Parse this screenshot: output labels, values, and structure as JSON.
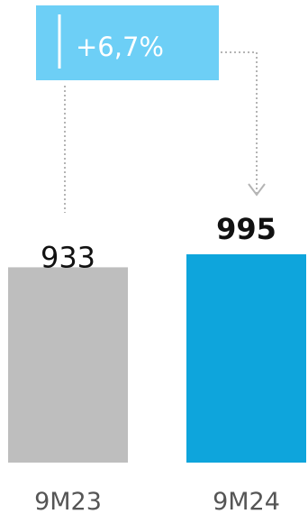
{
  "chart_data": {
    "type": "bar",
    "categories": [
      "9M23",
      "9M24"
    ],
    "values": [
      933,
      995
    ],
    "data_labels": [
      "933",
      "995"
    ],
    "ylim": [
      0,
      1050
    ],
    "grid": false,
    "legend": "none",
    "colors": {
      "bars": [
        "#bebebe",
        "#0ea5dc"
      ],
      "badge_background": "#6dcff6",
      "badge_text": "#ffffff",
      "connector": "#b4b4b4",
      "label_text": "#111111",
      "axis_text": "#555555"
    },
    "annotations": [
      {
        "text": "+6,7%",
        "from_category": "9M23",
        "to_category": "9M24"
      }
    ]
  }
}
